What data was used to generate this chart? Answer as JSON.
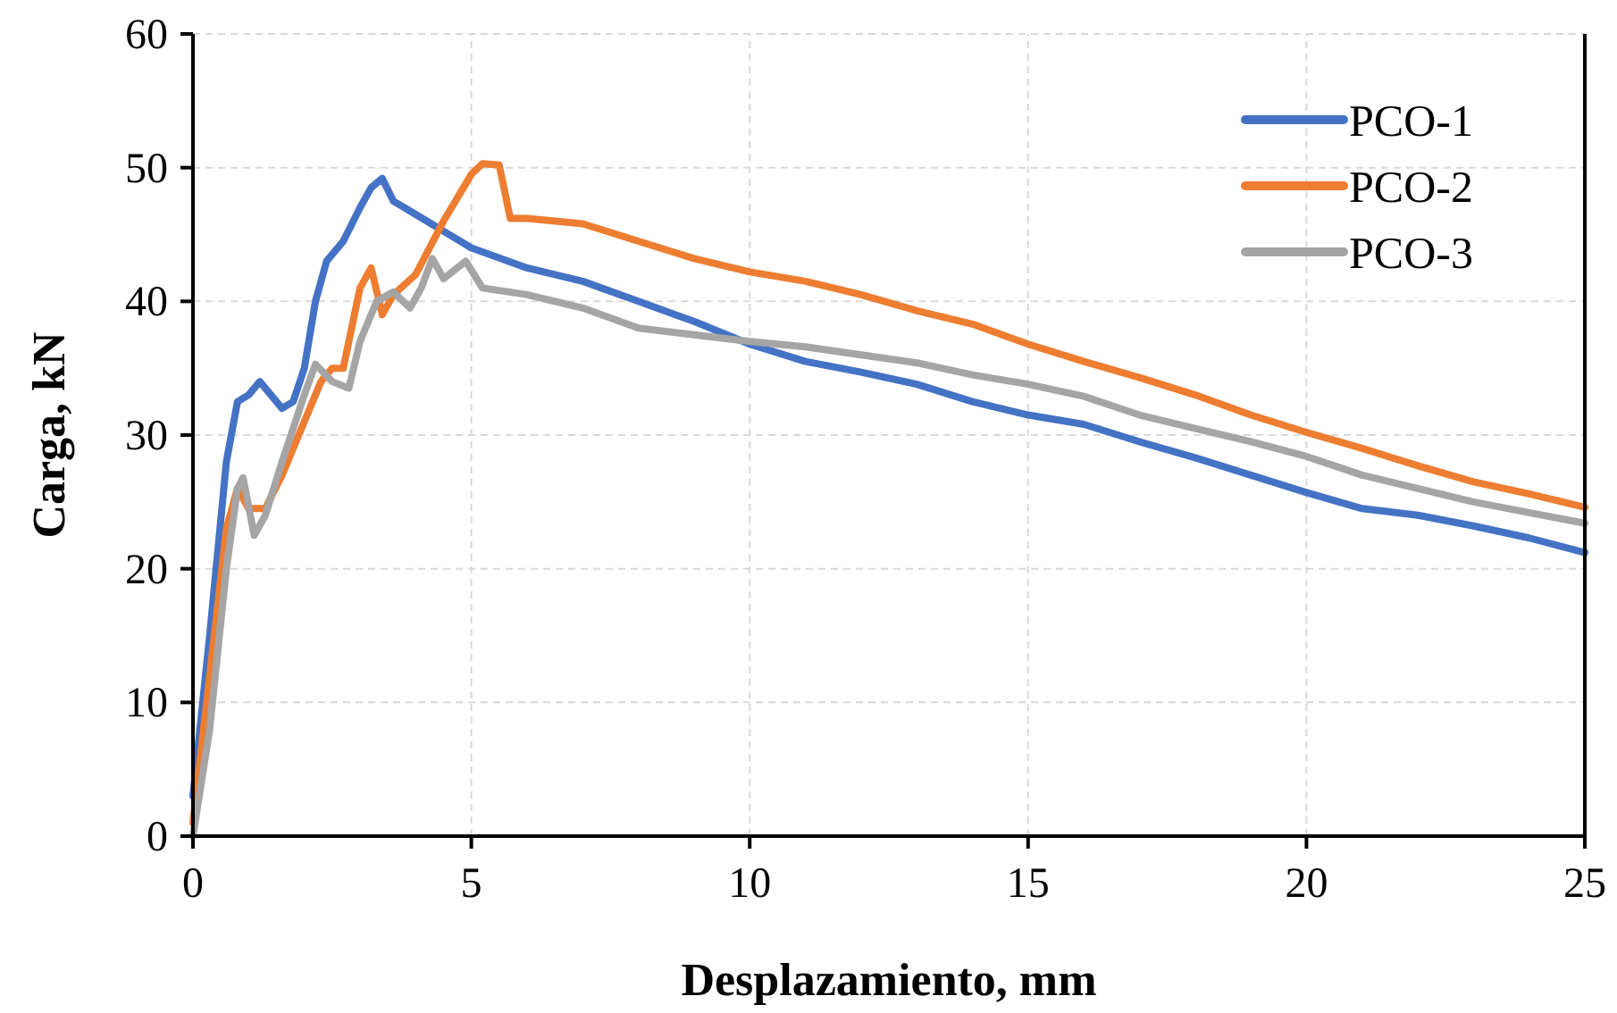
{
  "chart_data": {
    "type": "line",
    "xlabel": "Desplazamiento, mm",
    "ylabel": "Carga, kN",
    "xlim": [
      0,
      25
    ],
    "xticks": [
      0,
      5,
      10,
      15,
      20,
      25
    ],
    "ylim": [
      0,
      60
    ],
    "yticks": [
      0,
      10,
      20,
      30,
      40,
      50,
      60
    ],
    "grid": true,
    "legend": "top right",
    "marker": "none",
    "line_style": "solid",
    "series": [
      {
        "name": "PCO-1",
        "color": "#4472c4",
        "x": [
          0,
          0.3,
          0.6,
          0.8,
          1.0,
          1.2,
          1.4,
          1.6,
          1.8,
          2.0,
          2.2,
          2.4,
          2.7,
          3.0,
          3.2,
          3.4,
          3.6,
          4.0,
          5,
          6,
          7,
          8,
          9,
          10,
          11,
          12,
          13,
          14,
          15,
          16,
          17,
          18,
          19,
          20,
          21,
          22,
          23,
          24,
          25
        ],
        "values": [
          3,
          15,
          28,
          32.5,
          33,
          34,
          33,
          32,
          32.5,
          35,
          40,
          43,
          44.5,
          47,
          48.5,
          49.2,
          47.5,
          46.5,
          44,
          42.5,
          41.5,
          40,
          38.5,
          36.8,
          35.5,
          34.7,
          33.8,
          32.5,
          31.5,
          30.8,
          29.5,
          28.3,
          27,
          25.7,
          24.5,
          24,
          23.2,
          22.3,
          21.2
        ]
      },
      {
        "name": "PCO-2",
        "color": "#ed7d31",
        "x": [
          0,
          0.3,
          0.6,
          0.8,
          1.0,
          1.3,
          1.6,
          2.0,
          2.3,
          2.5,
          2.7,
          3.0,
          3.2,
          3.4,
          3.6,
          4.0,
          4.5,
          5.0,
          5.2,
          5.5,
          5.7,
          6,
          7,
          8,
          9,
          10,
          11,
          12,
          13,
          14,
          15,
          16,
          17,
          18,
          19,
          20,
          21,
          22,
          23,
          24,
          25
        ],
        "values": [
          1,
          12,
          23,
          26,
          24.5,
          24.5,
          27,
          31,
          34,
          35,
          35,
          41,
          42.5,
          39,
          40.5,
          42,
          46,
          49.5,
          50.3,
          50.2,
          46.2,
          46.2,
          45.8,
          44.5,
          43.2,
          42.2,
          41.5,
          40.5,
          39.3,
          38.3,
          36.8,
          35.5,
          34.3,
          33,
          31.5,
          30.2,
          29,
          27.7,
          26.5,
          25.6,
          24.6
        ]
      },
      {
        "name": "PCO-3",
        "color": "#a5a5a5",
        "x": [
          0,
          0.3,
          0.6,
          0.8,
          0.9,
          1.1,
          1.3,
          1.6,
          2.0,
          2.2,
          2.5,
          2.8,
          3.0,
          3.3,
          3.6,
          3.9,
          4.1,
          4.3,
          4.5,
          4.9,
          5.2,
          6,
          7,
          8,
          9,
          10,
          11,
          12,
          13,
          14,
          15,
          16,
          17,
          18,
          19,
          20,
          21,
          22,
          23,
          24,
          25
        ],
        "values": [
          0,
          8,
          20,
          26,
          26.8,
          22.5,
          24,
          28,
          33,
          35.3,
          34,
          33.5,
          37,
          40,
          40.7,
          39.5,
          41,
          43.2,
          41.7,
          43,
          41,
          40.5,
          39.5,
          38,
          37.5,
          37,
          36.6,
          36,
          35.4,
          34.5,
          33.8,
          32.9,
          31.5,
          30.5,
          29.5,
          28.4,
          27,
          26,
          25,
          24.2,
          23.4
        ]
      }
    ]
  }
}
